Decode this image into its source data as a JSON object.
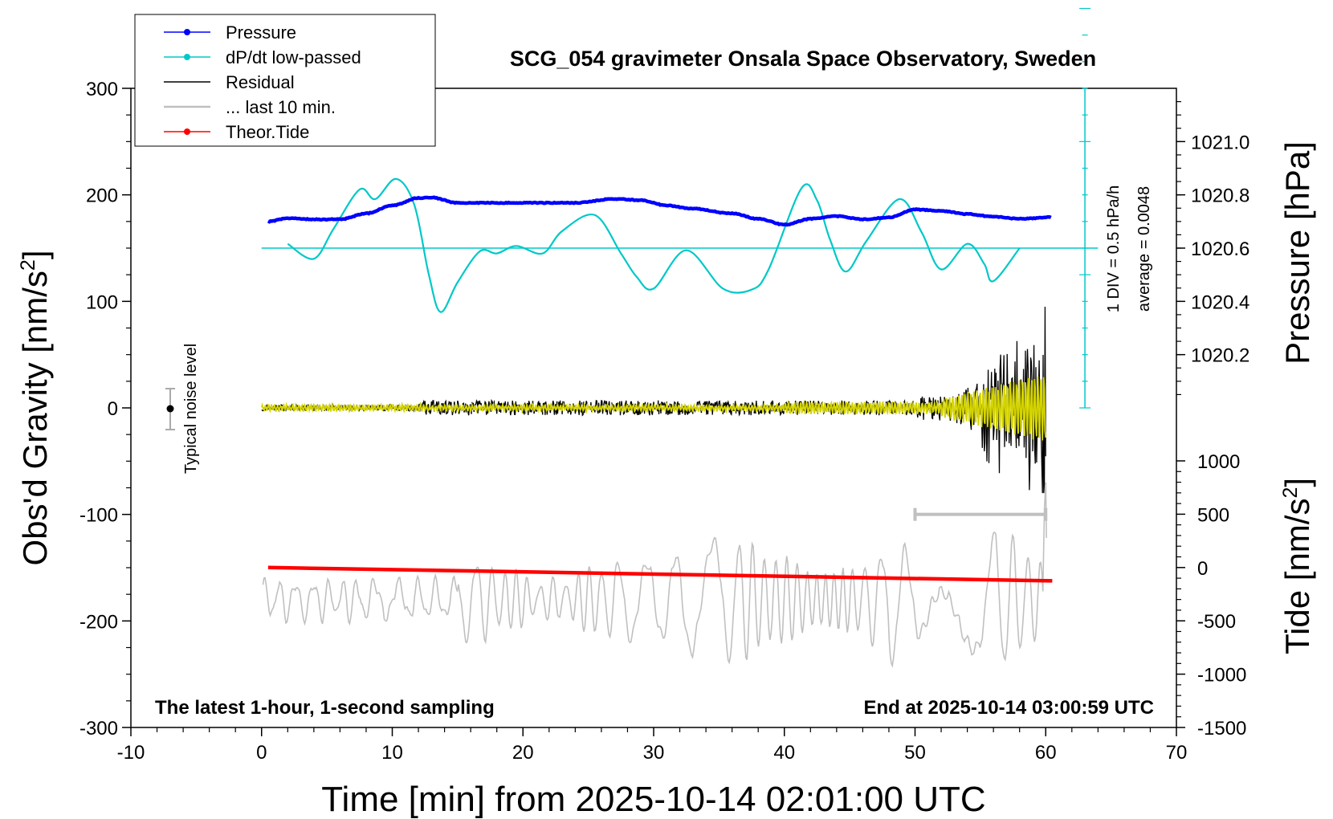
{
  "chart_data": {
    "type": "line",
    "title": "SCG_054 gravimeter Onsala Space Observatory, Sweden",
    "xlabel": "Time [min] from 2025-10-14 02:01:00 UTC",
    "xlim": [
      -10,
      70
    ],
    "xticks": [
      -10,
      0,
      10,
      20,
      30,
      40,
      50,
      60,
      70
    ],
    "ylabel_left_prefix": "Obs'd Gravity [nm/s",
    "ylabel_left_sup": "2",
    "ylabel_left_suffix": "]",
    "ylim_left": [
      -300,
      300
    ],
    "yticks_left": [
      300,
      200,
      100,
      0,
      -100,
      -200,
      -300
    ],
    "ylabel_pressure": "Pressure [hPa]",
    "pressure_range": [
      1020.0,
      1021.2
    ],
    "yticks_pressure": [
      "1021.0",
      "1020.8",
      "1020.6",
      "1020.4",
      "1020.2"
    ],
    "ylabel_tide_prefix": "Tide [nm/s",
    "ylabel_tide_sup": "2",
    "ylabel_tide_suffix": "]",
    "tide_range": [
      -1500,
      1000
    ],
    "yticks_tide": [
      "1000",
      "500",
      "0",
      "-500",
      "-1000",
      "-1500"
    ],
    "legend": [
      {
        "label": "Pressure",
        "color": "#0000ff",
        "marker": true
      },
      {
        "label": "dP/dt low-passed",
        "color": "#00c8c8",
        "marker": true
      },
      {
        "label": "Residual",
        "color": "#000000",
        "marker": false
      },
      {
        "label": "... last 10 min.",
        "color": "#c0c0c0",
        "marker": false
      },
      {
        "label": "Theor.Tide",
        "color": "#ff0000",
        "marker": true
      }
    ],
    "dpdt_scale_label": "1 DIV = 0.5 hPa/h",
    "dpdt_average_label": "average = 0.0048",
    "noise_label": "Typical noise level",
    "bottom_left_note": "The latest 1-hour, 1-second sampling",
    "bottom_right_note": "End at 2025-10-14 03:00:59 UTC",
    "colors": {
      "pressure": "#0000ff",
      "dpdt": "#00c8c8",
      "residual": "#000000",
      "residual_filtered": "#d4d400",
      "last10": "#c0c0c0",
      "tide": "#ff0000"
    },
    "series": [
      {
        "name": "Pressure",
        "unit": "hPa",
        "x": [
          0.5,
          2,
          4,
          6,
          8,
          10,
          12,
          13,
          15,
          18,
          21,
          24,
          27,
          29,
          31,
          33,
          36,
          38,
          40,
          42,
          44,
          46,
          48,
          50,
          52,
          54,
          56,
          58,
          60.5
        ],
        "y": [
          1020.7,
          1020.712,
          1020.708,
          1020.708,
          1020.73,
          1020.76,
          1020.788,
          1020.79,
          1020.77,
          1020.77,
          1020.77,
          1020.77,
          1020.785,
          1020.78,
          1020.76,
          1020.748,
          1020.73,
          1020.71,
          1020.688,
          1020.71,
          1020.72,
          1020.708,
          1020.715,
          1020.745,
          1020.74,
          1020.728,
          1020.718,
          1020.71,
          1020.716
        ]
      },
      {
        "name": "dP/dt low-passed",
        "unit": "gravity-axis divisions",
        "x": [
          2,
          4,
          5.5,
          7.5,
          8.7,
          10.3,
          11.7,
          12.8,
          13.7,
          15,
          16.7,
          18,
          19.5,
          21.5,
          23,
          25.5,
          27.5,
          28.7,
          30,
          32.5,
          35.3,
          37.5,
          38.8,
          41.3,
          42.5,
          43.5,
          44.7,
          46.3,
          48.8,
          50.5,
          52,
          54,
          55.3,
          56,
          58
        ],
        "y": [
          154,
          140,
          168,
          205,
          196,
          215,
          190,
          125,
          90,
          118,
          147,
          145,
          152,
          145,
          166,
          181,
          145,
          123,
          112,
          148,
          112,
          111,
          130,
          206,
          195,
          158,
          128,
          157,
          196,
          165,
          130,
          154,
          135,
          119,
          150
        ]
      },
      {
        "name": "Theor.Tide",
        "unit": "nm/s2",
        "x": [
          0.5,
          60.5
        ],
        "y": [
          0,
          -125
        ]
      }
    ]
  }
}
